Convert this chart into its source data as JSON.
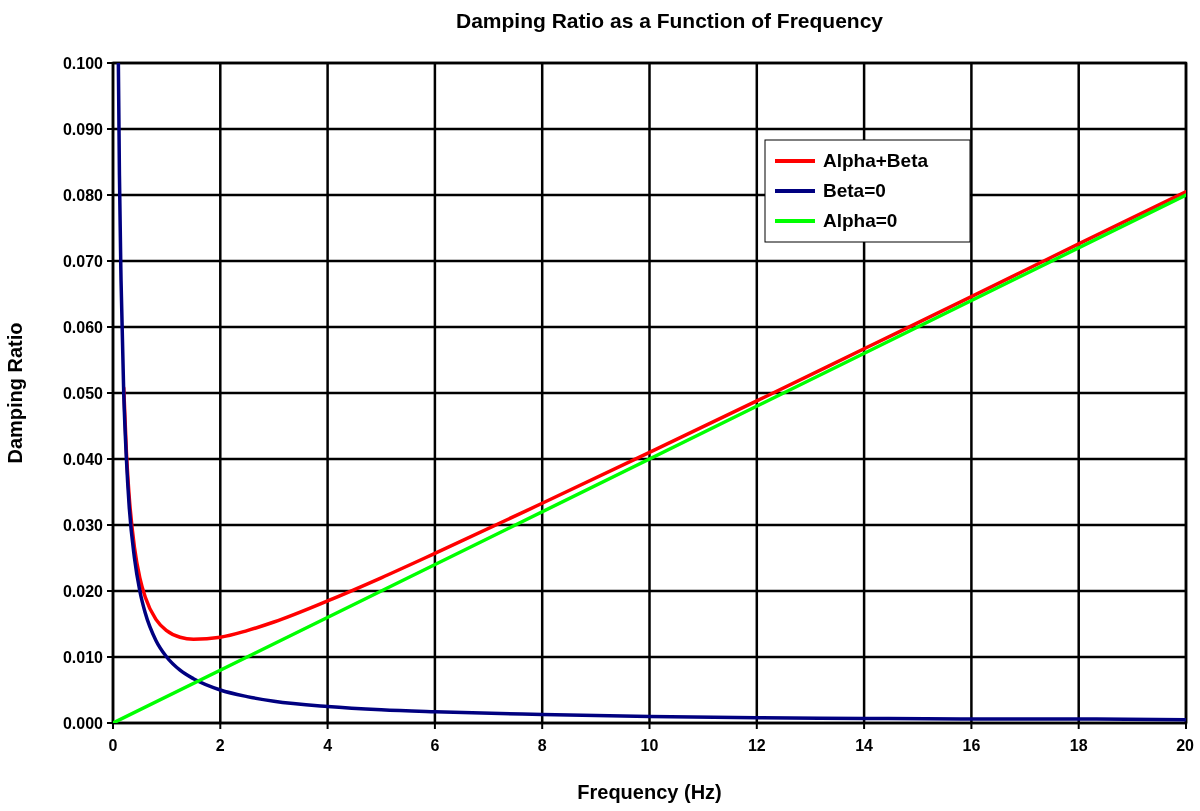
{
  "chart_data": {
    "type": "line",
    "title": "Damping Ratio as a Function of Frequency",
    "xlabel": "Frequency (Hz)",
    "ylabel": "Damping Ratio",
    "xlim": [
      0,
      20
    ],
    "ylim": [
      0,
      0.1
    ],
    "xticks": [
      0,
      2,
      4,
      6,
      8,
      10,
      12,
      14,
      16,
      18,
      20
    ],
    "yticks": [
      {
        "value": 0,
        "label": "0.000"
      },
      {
        "value": 0.01,
        "label": "0.010"
      },
      {
        "value": 0.02,
        "label": "0.020"
      },
      {
        "value": 0.03,
        "label": "0.030"
      },
      {
        "value": 0.04,
        "label": "0.040"
      },
      {
        "value": 0.05,
        "label": "0.050"
      },
      {
        "value": 0.06,
        "label": "0.060"
      },
      {
        "value": 0.07,
        "label": "0.070"
      },
      {
        "value": 0.08,
        "label": "0.080"
      },
      {
        "value": 0.09,
        "label": "0.090"
      },
      {
        "value": 0.1,
        "label": "0.100"
      }
    ],
    "grid": true,
    "legend": "top right",
    "marker": "none",
    "line_style": "solid",
    "series": [
      {
        "name": "Alpha+Beta",
        "color": "#ff0000",
        "x": [
          0.2,
          0.25,
          0.3,
          0.4,
          0.5,
          0.6,
          0.8,
          1,
          1.25,
          1.5,
          2,
          2.5,
          3,
          4,
          5,
          6,
          8,
          10,
          12,
          14,
          16,
          18,
          20
        ],
        "values": [
          0.0508,
          0.041,
          0.0345,
          0.0266,
          0.022,
          0.0191,
          0.0157,
          0.014,
          0.013,
          0.0127,
          0.013,
          0.014,
          0.0153,
          0.0185,
          0.022,
          0.0257,
          0.0333,
          0.041,
          0.0488,
          0.0567,
          0.0646,
          0.0726,
          0.0805
        ]
      },
      {
        "name": "Beta=0",
        "color": "#000080",
        "x": [
          0.1,
          0.12,
          0.15,
          0.2,
          0.25,
          0.3,
          0.4,
          0.5,
          0.6,
          0.8,
          1,
          1.25,
          1.5,
          2,
          2.5,
          3,
          4,
          5,
          6,
          8,
          10,
          12,
          14,
          16,
          18,
          20
        ],
        "values": [
          0.1,
          0.083,
          0.067,
          0.05,
          0.04,
          0.033,
          0.025,
          0.02,
          0.0167,
          0.0125,
          0.01,
          0.008,
          0.0067,
          0.005,
          0.004,
          0.0033,
          0.0025,
          0.002,
          0.0017,
          0.0013,
          0.001,
          0.0008,
          0.0007,
          0.0006,
          0.0006,
          0.0005
        ]
      },
      {
        "name": "Alpha=0",
        "color": "#00ff00",
        "x": [
          0,
          20
        ],
        "values": [
          0,
          0.08
        ]
      }
    ]
  }
}
